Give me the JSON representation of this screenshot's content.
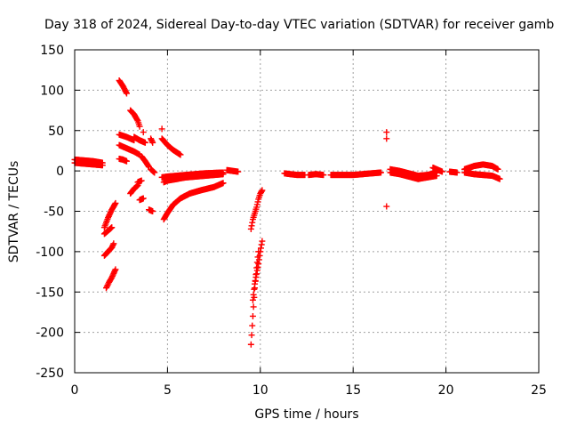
{
  "chart_data": {
    "type": "scatter",
    "title": "Day 318 of 2024, Sidereal Day-to-day VTEC variation (SDTVAR) for receiver gamb",
    "xlabel": "GPS time / hours",
    "ylabel": "SDTVAR / TECUs",
    "xlim": [
      0,
      25
    ],
    "ylim": [
      -250,
      150
    ],
    "xticks": [
      0,
      5,
      10,
      15,
      20,
      25
    ],
    "yticks": [
      -250,
      -200,
      -150,
      -100,
      -50,
      0,
      50,
      100,
      150
    ],
    "grid": true,
    "marker": "+",
    "color": "#ff0000",
    "segments": [
      {
        "x": [
          0.0,
          0.5,
          1.0,
          1.5
        ],
        "y": [
          14,
          13,
          12,
          10
        ]
      },
      {
        "x": [
          0.0,
          0.5,
          1.0,
          1.5
        ],
        "y": [
          10,
          9,
          8,
          7
        ]
      },
      {
        "x": [
          1.6,
          1.8,
          2.0,
          2.2
        ],
        "y": [
          -70,
          -58,
          -48,
          -40
        ]
      },
      {
        "x": [
          1.6,
          1.8,
          2.0
        ],
        "y": [
          -78,
          -74,
          -70
        ]
      },
      {
        "x": [
          1.6,
          1.8,
          2.0,
          2.1
        ],
        "y": [
          -105,
          -100,
          -95,
          -90
        ]
      },
      {
        "x": [
          1.7,
          1.85,
          2.0,
          2.1,
          2.2
        ],
        "y": [
          -145,
          -138,
          -132,
          -127,
          -122
        ]
      },
      {
        "x": [
          2.4,
          2.6,
          2.8
        ],
        "y": [
          112,
          105,
          96
        ]
      },
      {
        "x": [
          2.4,
          2.8,
          3.2
        ],
        "y": [
          45,
          42,
          38
        ]
      },
      {
        "x": [
          2.4,
          2.8,
          3.2,
          3.5
        ],
        "y": [
          32,
          28,
          24,
          20
        ]
      },
      {
        "x": [
          2.4,
          2.6,
          2.8
        ],
        "y": [
          15,
          14,
          12
        ]
      },
      {
        "x": [
          3.0,
          3.2,
          3.4,
          3.5
        ],
        "y": [
          75,
          70,
          62,
          55
        ]
      },
      {
        "x": [
          3.2,
          3.5,
          3.8
        ],
        "y": [
          42,
          38,
          35
        ]
      },
      {
        "x": [
          3.6,
          3.8,
          4.0
        ],
        "y": [
          18,
          12,
          5
        ]
      },
      {
        "x": [
          3.0,
          3.2,
          3.4
        ],
        "y": [
          -28,
          -22,
          -18
        ]
      },
      {
        "x": [
          3.5,
          3.7
        ],
        "y": [
          -36,
          -34
        ]
      },
      {
        "x": [
          3.4,
          3.6
        ],
        "y": [
          -14,
          -12
        ]
      },
      {
        "x": [
          3.7
        ],
        "y": [
          48
        ]
      },
      {
        "x": [
          4.1,
          4.2
        ],
        "y": [
          40,
          35
        ]
      },
      {
        "x": [
          4.1,
          4.3
        ],
        "y": [
          2,
          -2
        ]
      },
      {
        "x": [
          4.0,
          4.2
        ],
        "y": [
          -48,
          -50
        ]
      },
      {
        "x": [
          4.7
        ],
        "y": [
          52
        ]
      },
      {
        "x": [
          4.7,
          5.0,
          5.3,
          5.7
        ],
        "y": [
          40,
          32,
          26,
          20
        ]
      },
      {
        "x": [
          4.7,
          5.0,
          5.5,
          6.0,
          7.0,
          8.0
        ],
        "y": [
          -8,
          -7,
          -6,
          -5,
          -3,
          -2
        ]
      },
      {
        "x": [
          4.8,
          5.0,
          5.5,
          6.0,
          7.0,
          8.0
        ],
        "y": [
          -14,
          -12,
          -10,
          -8,
          -6,
          -4
        ]
      },
      {
        "x": [
          4.8,
          5.0,
          5.3,
          5.7,
          6.2,
          6.8,
          7.5,
          8.0
        ],
        "y": [
          -60,
          -52,
          -42,
          -34,
          -28,
          -24,
          -20,
          -15
        ]
      },
      {
        "x": [
          8.2,
          8.5,
          8.8
        ],
        "y": [
          1,
          0,
          -1
        ]
      },
      {
        "x": [
          9.5,
          9.6,
          9.7,
          9.8,
          9.9
        ],
        "y": [
          -215,
          -180,
          -145,
          -120,
          -100
        ]
      },
      {
        "x": [
          9.6,
          9.7,
          9.9,
          10.0,
          10.1
        ],
        "y": [
          -160,
          -140,
          -115,
          -100,
          -87
        ]
      },
      {
        "x": [
          9.5,
          9.6,
          9.8,
          9.9,
          10.0,
          10.1
        ],
        "y": [
          -72,
          -60,
          -45,
          -35,
          -28,
          -24
        ]
      },
      {
        "x": [
          11.3,
          11.6,
          12.0,
          12.4
        ],
        "y": [
          -3,
          -4,
          -5,
          -5
        ]
      },
      {
        "x": [
          12.6,
          13.0,
          13.4
        ],
        "y": [
          -5,
          -4,
          -5
        ]
      },
      {
        "x": [
          13.8,
          14.5,
          15.0,
          15.5,
          16.0,
          16.5
        ],
        "y": [
          -5,
          -5,
          -5,
          -4,
          -3,
          -2
        ]
      },
      {
        "x": [
          16.8
        ],
        "y": [
          48
        ]
      },
      {
        "x": [
          16.8
        ],
        "y": [
          40
        ]
      },
      {
        "x": [
          16.8
        ],
        "y": [
          -44
        ]
      },
      {
        "x": [
          17.0,
          17.5,
          18.0,
          18.5,
          19.0,
          19.5
        ],
        "y": [
          2,
          0,
          -3,
          -6,
          -5,
          -2
        ]
      },
      {
        "x": [
          17.0,
          17.5,
          18.0,
          18.5,
          19.0,
          19.5
        ],
        "y": [
          -2,
          -4,
          -7,
          -10,
          -8,
          -6
        ]
      },
      {
        "x": [
          19.3,
          19.5,
          19.8
        ],
        "y": [
          4,
          2,
          -1
        ]
      },
      {
        "x": [
          20.2,
          20.6
        ],
        "y": [
          -1,
          -2
        ]
      },
      {
        "x": [
          21.0,
          21.5,
          22.0,
          22.5,
          22.8
        ],
        "y": [
          2,
          6,
          8,
          6,
          2
        ]
      },
      {
        "x": [
          21.0,
          21.5,
          22.0,
          22.5,
          22.9
        ],
        "y": [
          -2,
          -4,
          -5,
          -6,
          -10
        ]
      }
    ]
  }
}
